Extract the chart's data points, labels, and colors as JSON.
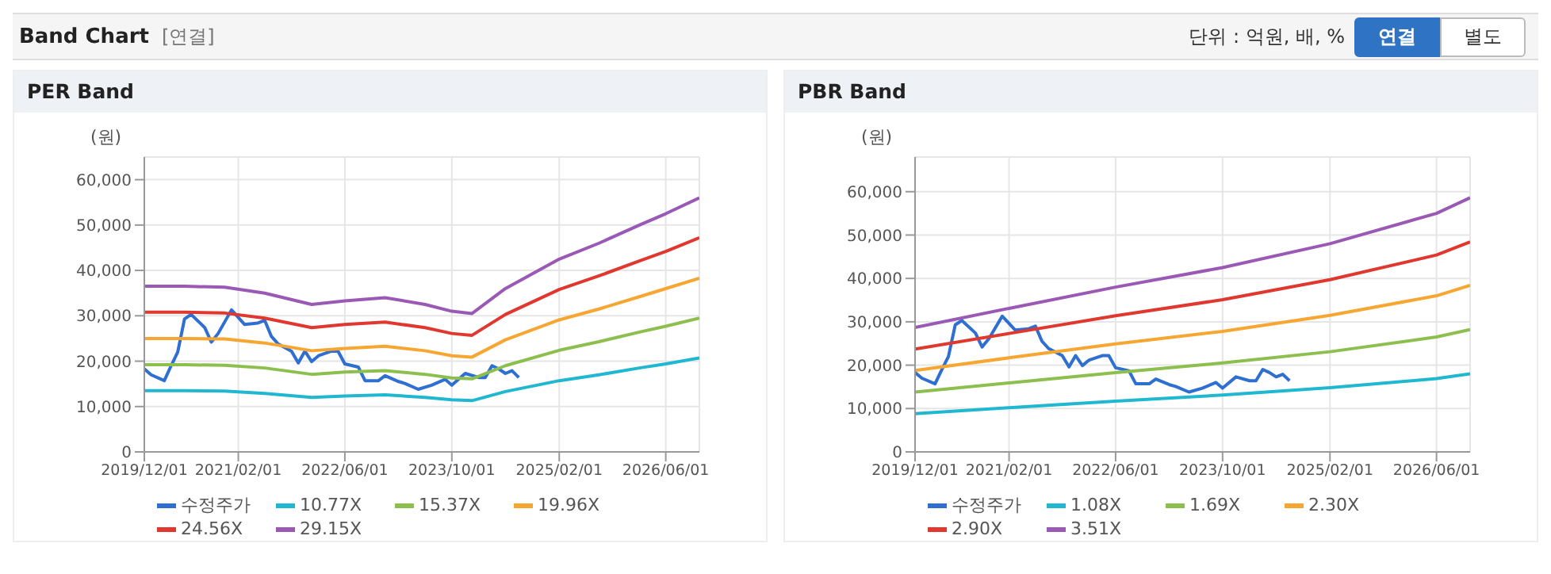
{
  "chart_data": [
    {
      "type": "line",
      "title": "PER Band",
      "ylabel": "(원)",
      "annotations": [
        "Band Chart",
        "[연결]",
        "단위 : 억원, 배, %",
        "연결",
        "별도"
      ],
      "xlim": [
        "2019-12-01",
        "2026-11-01"
      ],
      "xticks": [
        {
          "value": "2019-12-01",
          "label": "2019/12/01"
        },
        {
          "value": "2021-02-01",
          "label": "2021/02/01"
        },
        {
          "value": "2022-06-01",
          "label": "2022/06/01"
        },
        {
          "value": "2023-10-01",
          "label": "2023/10/01"
        },
        {
          "value": "2025-02-01",
          "label": "2025/02/01"
        },
        {
          "value": "2026-06-01",
          "label": "2026/06/01"
        }
      ],
      "ylim": [
        0,
        65000
      ],
      "yticks": [
        {
          "value": 0,
          "label": "0"
        },
        {
          "value": 10000,
          "label": "10,000"
        },
        {
          "value": 20000,
          "label": "20,000"
        },
        {
          "value": 30000,
          "label": "30,000"
        },
        {
          "value": 40000,
          "label": "40,000"
        },
        {
          "value": 50000,
          "label": "50,000"
        },
        {
          "value": 60000,
          "label": "60,000"
        }
      ],
      "grid": true,
      "legend": "bottom",
      "marker": "none",
      "line_style": "solid",
      "series": [
        {
          "name": "수정주가",
          "color": "#2f6fd1",
          "x": [
            "2019-12",
            "2020-01",
            "2020-03",
            "2020-04",
            "2020-05",
            "2020-06",
            "2020-07",
            "2020-09",
            "2020-10",
            "2020-11",
            "2021-01",
            "2021-03",
            "2021-05",
            "2021-06",
            "2021-07",
            "2021-08",
            "2021-10",
            "2021-11",
            "2021-12",
            "2022-01",
            "2022-02",
            "2022-04",
            "2022-05",
            "2022-06",
            "2022-08",
            "2022-09",
            "2022-11",
            "2022-12",
            "2023-02",
            "2023-03",
            "2023-05",
            "2023-07",
            "2023-09",
            "2023-10",
            "2023-12",
            "2024-02",
            "2024-03",
            "2024-04",
            "2024-05",
            "2024-06",
            "2024-07",
            "2024-08"
          ],
          "values": [
            18300,
            17000,
            15700,
            19000,
            22000,
            29300,
            30300,
            27400,
            24200,
            26100,
            31300,
            28100,
            28400,
            29000,
            25500,
            23800,
            22200,
            19600,
            22200,
            19900,
            21200,
            22200,
            22200,
            19400,
            18700,
            15700,
            15700,
            16800,
            15500,
            15100,
            13800,
            14700,
            16000,
            14700,
            17300,
            16400,
            16400,
            19000,
            18300,
            17300,
            17900,
            16400
          ]
        },
        {
          "name": "10.77X",
          "color": "#1fb8d0",
          "x": [
            "2019-12",
            "2020-06",
            "2020-12",
            "2021-06",
            "2022-01",
            "2022-06",
            "2022-12",
            "2023-06",
            "2023-10",
            "2024-01",
            "2024-06",
            "2025-02",
            "2025-08",
            "2026-02",
            "2026-06",
            "2026-11"
          ],
          "values": [
            13500,
            13500,
            13400,
            12900,
            12000,
            12300,
            12600,
            12000,
            11500,
            11300,
            13300,
            15700,
            17000,
            18500,
            19400,
            20700
          ]
        },
        {
          "name": "15.37X",
          "color": "#8dbf4f",
          "x": [
            "2019-12",
            "2020-06",
            "2020-12",
            "2021-06",
            "2022-01",
            "2022-06",
            "2022-12",
            "2023-06",
            "2023-10",
            "2024-01",
            "2024-06",
            "2025-02",
            "2025-08",
            "2026-02",
            "2026-06",
            "2026-11"
          ],
          "values": [
            19200,
            19200,
            19100,
            18500,
            17100,
            17600,
            17900,
            17100,
            16300,
            16100,
            19000,
            22400,
            24300,
            26400,
            27700,
            29500
          ]
        },
        {
          "name": "19.96X",
          "color": "#f7a631",
          "x": [
            "2019-12",
            "2020-06",
            "2020-12",
            "2021-06",
            "2022-01",
            "2022-06",
            "2022-12",
            "2023-06",
            "2023-10",
            "2024-01",
            "2024-06",
            "2025-02",
            "2025-08",
            "2026-02",
            "2026-06",
            "2026-11"
          ],
          "values": [
            25000,
            25000,
            24900,
            24000,
            22300,
            22800,
            23300,
            22300,
            21200,
            20900,
            24700,
            29100,
            31500,
            34200,
            36000,
            38300
          ]
        },
        {
          "name": "24.56X",
          "color": "#e0382f",
          "x": [
            "2019-12",
            "2020-06",
            "2020-12",
            "2021-06",
            "2022-01",
            "2022-06",
            "2022-12",
            "2023-06",
            "2023-10",
            "2024-01",
            "2024-06",
            "2025-02",
            "2025-08",
            "2026-02",
            "2026-06",
            "2026-11"
          ],
          "values": [
            30800,
            30800,
            30600,
            29500,
            27400,
            28100,
            28600,
            27400,
            26100,
            25700,
            30300,
            35800,
            38800,
            42100,
            44200,
            47200
          ]
        },
        {
          "name": "29.15X",
          "color": "#9b59b6",
          "x": [
            "2019-12",
            "2020-06",
            "2020-12",
            "2021-06",
            "2022-01",
            "2022-06",
            "2022-12",
            "2023-06",
            "2023-10",
            "2024-01",
            "2024-06",
            "2025-02",
            "2025-08",
            "2026-02",
            "2026-06",
            "2026-11"
          ],
          "values": [
            36500,
            36500,
            36300,
            35000,
            32500,
            33300,
            34000,
            32500,
            31000,
            30500,
            36000,
            42500,
            46000,
            50000,
            52500,
            56000
          ]
        }
      ]
    },
    {
      "type": "line",
      "title": "PBR Band",
      "ylabel": "(원)",
      "xlim": [
        "2019-12-01",
        "2026-11-01"
      ],
      "xticks": [
        {
          "value": "2019-12-01",
          "label": "2019/12/01"
        },
        {
          "value": "2021-02-01",
          "label": "2021/02/01"
        },
        {
          "value": "2022-06-01",
          "label": "2022/06/01"
        },
        {
          "value": "2023-10-01",
          "label": "2023/10/01"
        },
        {
          "value": "2025-02-01",
          "label": "2025/02/01"
        },
        {
          "value": "2026-06-01",
          "label": "2026/06/01"
        }
      ],
      "ylim": [
        0,
        68000
      ],
      "yticks": [
        {
          "value": 0,
          "label": "0"
        },
        {
          "value": 10000,
          "label": "10,000"
        },
        {
          "value": 20000,
          "label": "20,000"
        },
        {
          "value": 30000,
          "label": "30,000"
        },
        {
          "value": 40000,
          "label": "40,000"
        },
        {
          "value": 50000,
          "label": "50,000"
        },
        {
          "value": 60000,
          "label": "60,000"
        }
      ],
      "grid": true,
      "legend": "bottom",
      "marker": "none",
      "line_style": "solid",
      "series": [
        {
          "name": "수정주가",
          "color": "#2f6fd1",
          "x": [
            "2019-12",
            "2020-01",
            "2020-03",
            "2020-04",
            "2020-05",
            "2020-06",
            "2020-07",
            "2020-09",
            "2020-10",
            "2020-11",
            "2021-01",
            "2021-03",
            "2021-05",
            "2021-06",
            "2021-07",
            "2021-08",
            "2021-10",
            "2021-11",
            "2021-12",
            "2022-01",
            "2022-02",
            "2022-04",
            "2022-05",
            "2022-06",
            "2022-08",
            "2022-09",
            "2022-11",
            "2022-12",
            "2023-02",
            "2023-03",
            "2023-05",
            "2023-07",
            "2023-09",
            "2023-10",
            "2023-12",
            "2024-02",
            "2024-03",
            "2024-04",
            "2024-05",
            "2024-06",
            "2024-07",
            "2024-08"
          ],
          "values": [
            18300,
            17000,
            15700,
            19000,
            22000,
            29300,
            30300,
            27400,
            24200,
            26100,
            31300,
            28100,
            28400,
            29000,
            25500,
            23800,
            22200,
            19600,
            22200,
            19900,
            21200,
            22200,
            22200,
            19400,
            18700,
            15700,
            15700,
            16800,
            15500,
            15100,
            13800,
            14700,
            16000,
            14700,
            17300,
            16400,
            16400,
            19000,
            18300,
            17300,
            17900,
            16400
          ]
        },
        {
          "name": "1.08X",
          "color": "#1fb8d0",
          "x": [
            "2019-12",
            "2021-02",
            "2022-06",
            "2023-10",
            "2025-02",
            "2026-06",
            "2026-11"
          ],
          "values": [
            8800,
            10200,
            11700,
            13100,
            14800,
            16900,
            18000
          ]
        },
        {
          "name": "1.69X",
          "color": "#8dbf4f",
          "x": [
            "2019-12",
            "2021-02",
            "2022-06",
            "2023-10",
            "2025-02",
            "2026-06",
            "2026-11"
          ],
          "values": [
            13800,
            15900,
            18300,
            20500,
            23100,
            26500,
            28200
          ]
        },
        {
          "name": "2.30X",
          "color": "#f7a631",
          "x": [
            "2019-12",
            "2021-02",
            "2022-06",
            "2023-10",
            "2025-02",
            "2026-06",
            "2026-11"
          ],
          "values": [
            18800,
            21700,
            24900,
            27800,
            31500,
            36000,
            38400
          ]
        },
        {
          "name": "2.90X",
          "color": "#e0382f",
          "x": [
            "2019-12",
            "2021-02",
            "2022-06",
            "2023-10",
            "2025-02",
            "2026-06",
            "2026-11"
          ],
          "values": [
            23700,
            27300,
            31400,
            35100,
            39700,
            45400,
            48400
          ]
        },
        {
          "name": "3.51X",
          "color": "#9b59b6",
          "x": [
            "2019-12",
            "2021-02",
            "2022-06",
            "2023-10",
            "2025-02",
            "2026-06",
            "2026-11"
          ],
          "values": [
            28700,
            33100,
            38000,
            42500,
            48000,
            55000,
            58600
          ]
        }
      ]
    }
  ]
}
